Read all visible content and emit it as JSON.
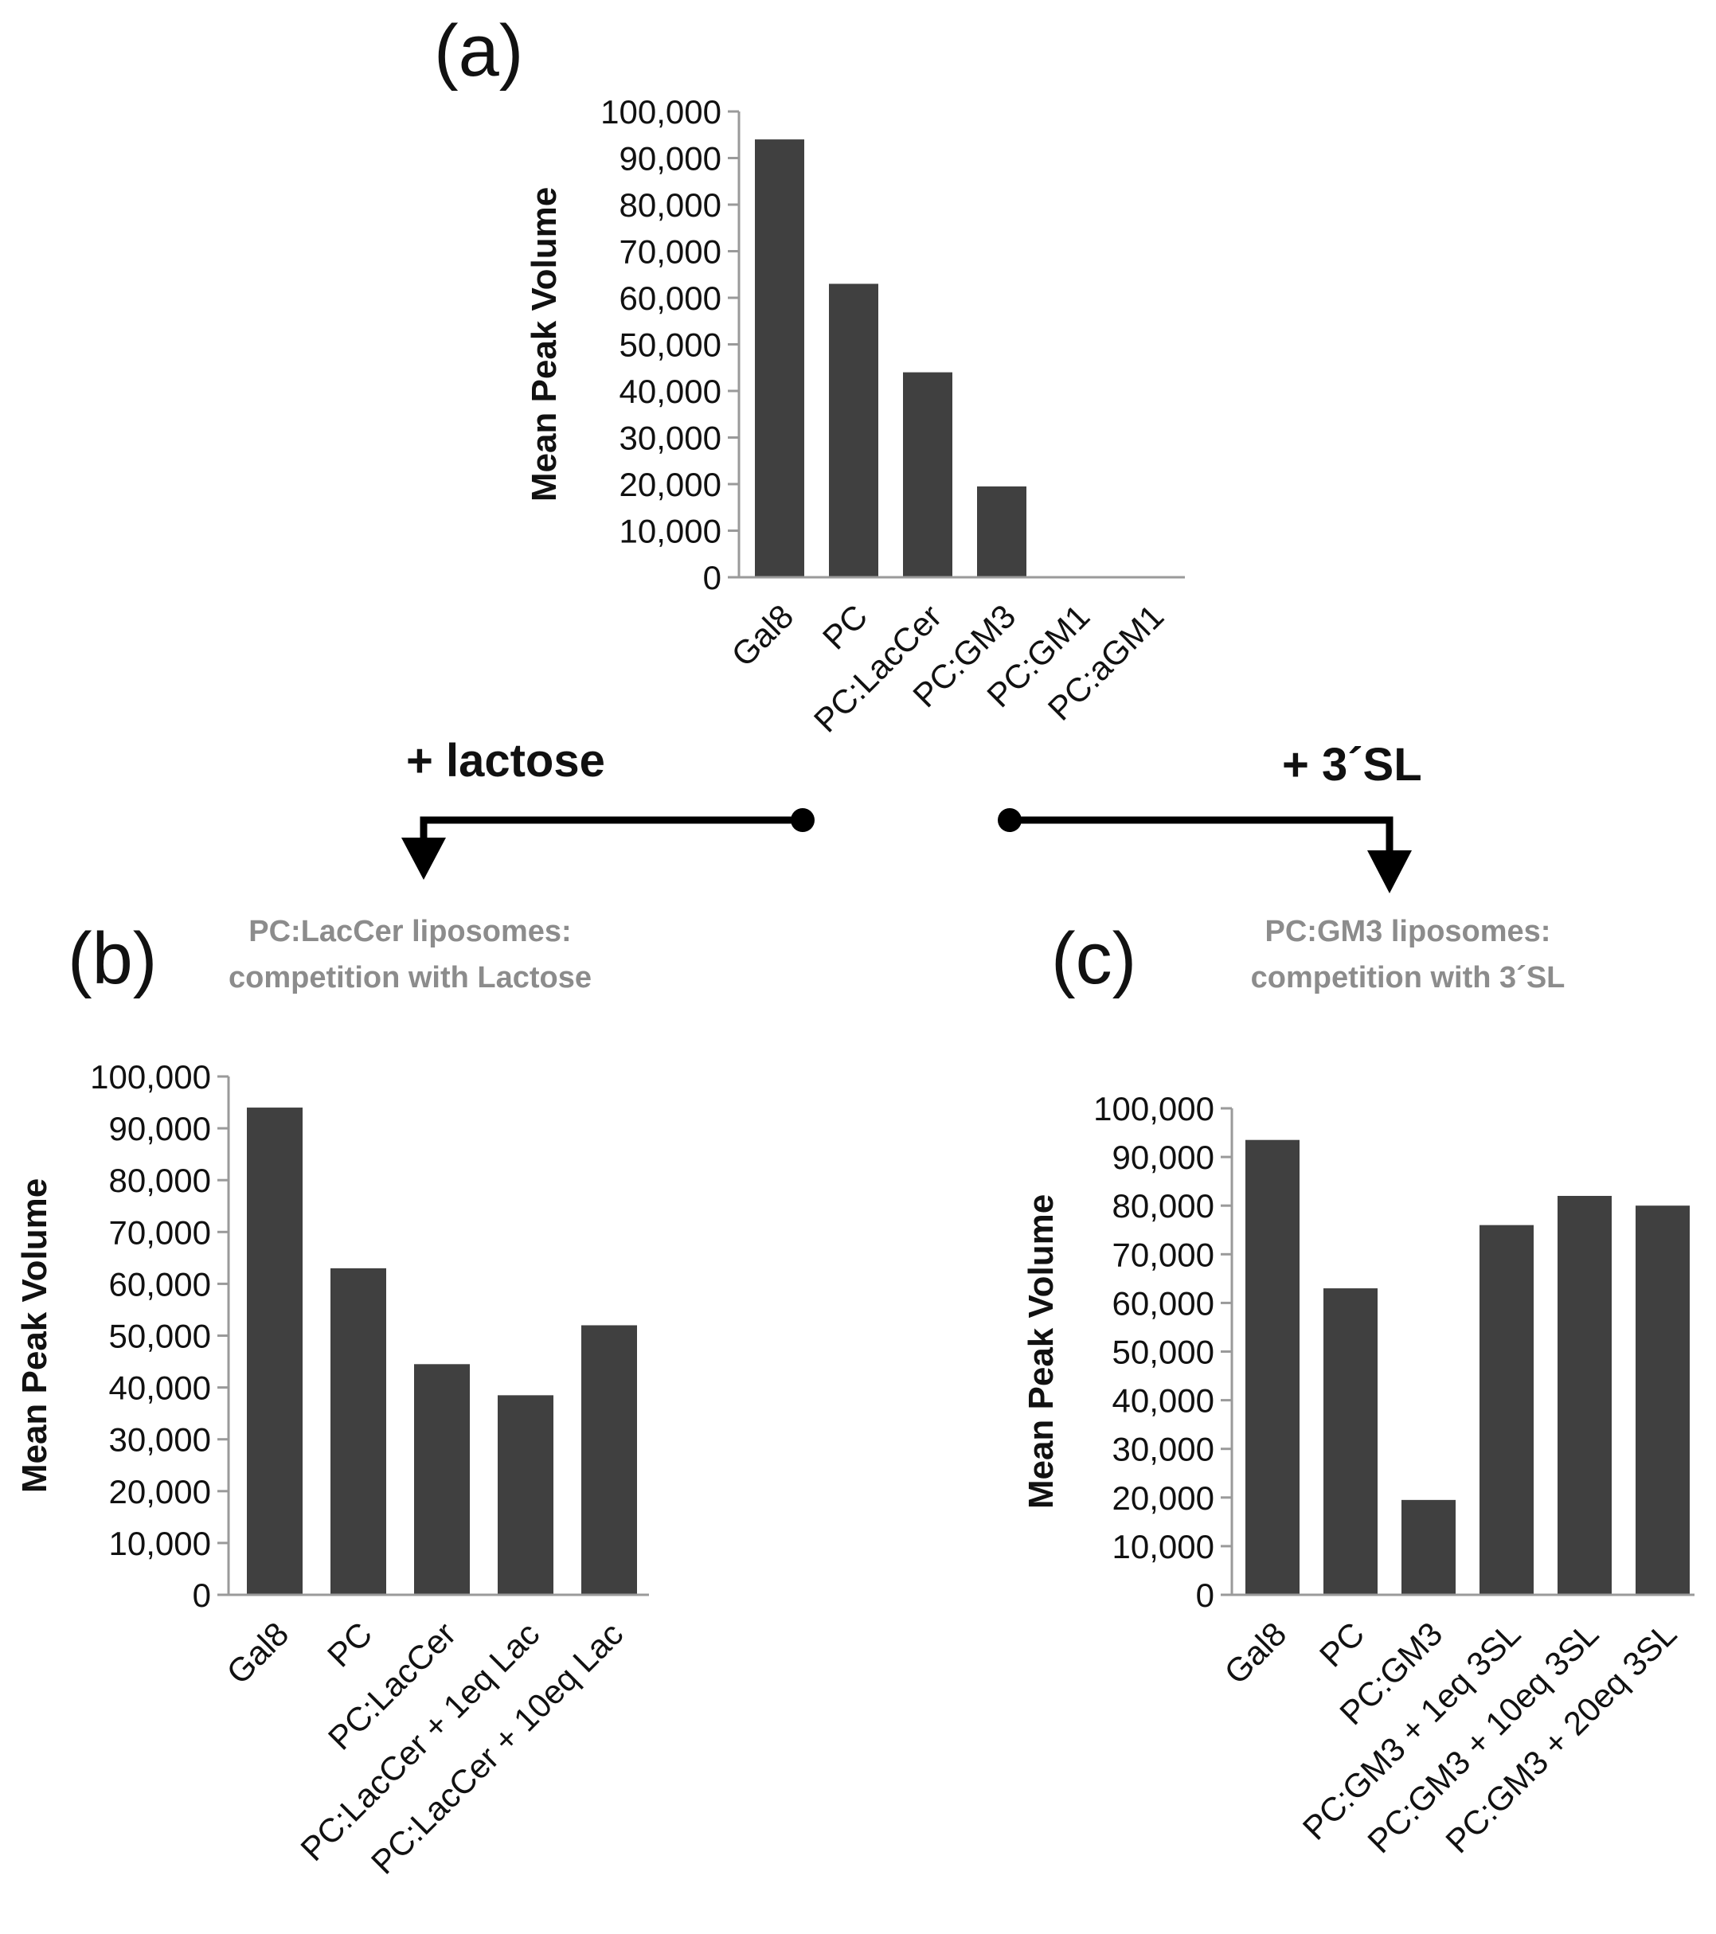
{
  "colors": {
    "bar": "#404040",
    "axis": "#9a9a9a",
    "text": "#111111",
    "subtitle": "#8c8c8c",
    "arrow": "#000000"
  },
  "arrows": {
    "left_label": "+ lactose",
    "right_label": "+ 3´SL"
  },
  "chart_data": [
    {
      "id": "a",
      "panel_label": "(a)",
      "type": "bar",
      "title": "",
      "xlabel": "",
      "ylabel": "Mean Peak Volume",
      "ylim": [
        0,
        100000
      ],
      "yticks": [
        "0",
        "10,000",
        "20,000",
        "30,000",
        "40,000",
        "50,000",
        "60,000",
        "70,000",
        "80,000",
        "90,000",
        "100,000"
      ],
      "categories": [
        "Gal8",
        "PC",
        "PC:LacCer",
        "PC:GM3",
        "PC:GM1",
        "PC:aGM1"
      ],
      "values": [
        94000,
        63000,
        44000,
        19500,
        0,
        0
      ],
      "grid": false
    },
    {
      "id": "b",
      "panel_label": "(b)",
      "type": "bar",
      "subtitle": [
        "PC:LacCer liposomes:",
        "competition with Lactose"
      ],
      "xlabel": "",
      "ylabel": "Mean Peak Volume",
      "ylim": [
        0,
        100000
      ],
      "yticks": [
        "0",
        "10,000",
        "20,000",
        "30,000",
        "40,000",
        "50,000",
        "60,000",
        "70,000",
        "80,000",
        "90,000",
        "100,000"
      ],
      "categories": [
        "Gal8",
        "PC",
        "PC:LacCer",
        "PC:LacCer + 1eq Lac",
        "PC:LacCer + 10eq Lac"
      ],
      "values": [
        94000,
        63000,
        44500,
        38500,
        52000
      ],
      "grid": false
    },
    {
      "id": "c",
      "panel_label": "(c)",
      "type": "bar",
      "subtitle": [
        "PC:GM3 liposomes:",
        "competition with 3´SL"
      ],
      "xlabel": "",
      "ylabel": "Mean Peak Volume",
      "ylim": [
        0,
        100000
      ],
      "yticks": [
        "0",
        "10,000",
        "20,000",
        "30,000",
        "40,000",
        "50,000",
        "60,000",
        "70,000",
        "80,000",
        "90,000",
        "100,000"
      ],
      "categories": [
        "Gal8",
        "PC",
        "PC:GM3",
        "PC:GM3 + 1eq 3SL",
        "PC:GM3 + 10eq 3SL",
        "PC:GM3 + 20eq 3SL"
      ],
      "values": [
        93500,
        63000,
        19500,
        76000,
        82000,
        80000
      ],
      "grid": false
    }
  ]
}
